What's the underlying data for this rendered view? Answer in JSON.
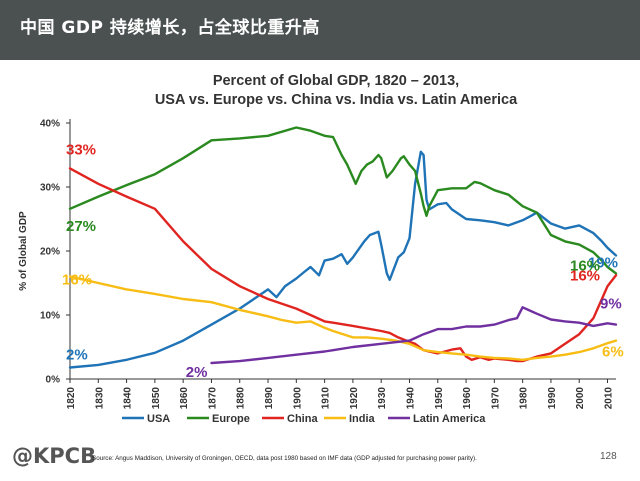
{
  "header": {
    "title": "中国 GDP 持续增长，占全球比重升高"
  },
  "chart_data": {
    "type": "line",
    "title": "Percent of Global GDP, 1820 – 2013,",
    "subtitle": "USA vs. Europe vs. China vs. India vs. Latin America",
    "xlabel": "",
    "ylabel": "% of Global GDP",
    "xlim": [
      1820,
      2013
    ],
    "ylim": [
      0,
      40
    ],
    "x_ticks": [
      1820,
      1830,
      1840,
      1850,
      1860,
      1870,
      1880,
      1890,
      1900,
      1910,
      1920,
      1930,
      1940,
      1950,
      1960,
      1970,
      1980,
      1990,
      2000,
      2010
    ],
    "y_ticks": [
      0,
      10,
      20,
      30,
      40
    ],
    "y_tick_labels": [
      "0%",
      "10%",
      "20%",
      "30%",
      "40%"
    ],
    "grid": false,
    "legend_position": "bottom",
    "series": [
      {
        "name": "USA",
        "color": "#1f73b7",
        "points": [
          [
            1820,
            1.8
          ],
          [
            1830,
            2.2
          ],
          [
            1840,
            3.0
          ],
          [
            1850,
            4.1
          ],
          [
            1860,
            6.0
          ],
          [
            1870,
            8.5
          ],
          [
            1880,
            11.0
          ],
          [
            1885,
            12.5
          ],
          [
            1890,
            14.0
          ],
          [
            1893,
            12.8
          ],
          [
            1896,
            14.5
          ],
          [
            1900,
            15.7
          ],
          [
            1903,
            16.8
          ],
          [
            1905,
            17.5
          ],
          [
            1908,
            16.2
          ],
          [
            1910,
            18.5
          ],
          [
            1913,
            18.8
          ],
          [
            1916,
            19.5
          ],
          [
            1918,
            18.0
          ],
          [
            1920,
            19.0
          ],
          [
            1924,
            21.5
          ],
          [
            1926,
            22.5
          ],
          [
            1929,
            23.0
          ],
          [
            1930,
            21.0
          ],
          [
            1932,
            16.5
          ],
          [
            1933,
            15.5
          ],
          [
            1936,
            19.0
          ],
          [
            1938,
            19.8
          ],
          [
            1940,
            22.0
          ],
          [
            1942,
            30.5
          ],
          [
            1944,
            35.5
          ],
          [
            1945,
            35.0
          ],
          [
            1946,
            28.0
          ],
          [
            1947,
            26.5
          ],
          [
            1950,
            27.3
          ],
          [
            1953,
            27.5
          ],
          [
            1955,
            26.5
          ],
          [
            1960,
            25.0
          ],
          [
            1965,
            24.8
          ],
          [
            1970,
            24.5
          ],
          [
            1975,
            24.0
          ],
          [
            1980,
            24.8
          ],
          [
            1983,
            25.5
          ],
          [
            1985,
            26.0
          ],
          [
            1990,
            24.3
          ],
          [
            1995,
            23.5
          ],
          [
            2000,
            24.0
          ],
          [
            2005,
            22.8
          ],
          [
            2008,
            21.5
          ],
          [
            2010,
            20.5
          ],
          [
            2013,
            19.3
          ]
        ]
      },
      {
        "name": "Europe",
        "color": "#2a8a1f",
        "points": [
          [
            1820,
            26.6
          ],
          [
            1830,
            28.5
          ],
          [
            1840,
            30.3
          ],
          [
            1850,
            32.0
          ],
          [
            1860,
            34.5
          ],
          [
            1870,
            37.3
          ],
          [
            1880,
            37.6
          ],
          [
            1890,
            38.0
          ],
          [
            1900,
            39.3
          ],
          [
            1905,
            38.8
          ],
          [
            1910,
            38.0
          ],
          [
            1913,
            37.8
          ],
          [
            1916,
            35.0
          ],
          [
            1918,
            33.5
          ],
          [
            1920,
            31.5
          ],
          [
            1921,
            30.5
          ],
          [
            1923,
            32.5
          ],
          [
            1925,
            33.5
          ],
          [
            1927,
            34.0
          ],
          [
            1929,
            35.0
          ],
          [
            1930,
            34.5
          ],
          [
            1932,
            31.5
          ],
          [
            1934,
            32.5
          ],
          [
            1937,
            34.5
          ],
          [
            1938,
            34.8
          ],
          [
            1940,
            33.5
          ],
          [
            1942,
            32.5
          ],
          [
            1944,
            29.0
          ],
          [
            1945,
            27.0
          ],
          [
            1946,
            25.5
          ],
          [
            1947,
            27.0
          ],
          [
            1950,
            29.5
          ],
          [
            1955,
            29.8
          ],
          [
            1960,
            29.8
          ],
          [
            1963,
            30.8
          ],
          [
            1965,
            30.6
          ],
          [
            1970,
            29.5
          ],
          [
            1975,
            28.8
          ],
          [
            1980,
            27.0
          ],
          [
            1985,
            26.0
          ],
          [
            1990,
            22.5
          ],
          [
            1995,
            21.5
          ],
          [
            2000,
            21.0
          ],
          [
            2005,
            19.8
          ],
          [
            2008,
            18.5
          ],
          [
            2010,
            17.5
          ],
          [
            2013,
            16.5
          ]
        ]
      },
      {
        "name": "China",
        "color": "#e02520",
        "points": [
          [
            1820,
            32.9
          ],
          [
            1830,
            30.5
          ],
          [
            1840,
            28.5
          ],
          [
            1850,
            26.6
          ],
          [
            1860,
            21.5
          ],
          [
            1870,
            17.2
          ],
          [
            1880,
            14.5
          ],
          [
            1890,
            12.5
          ],
          [
            1900,
            11.0
          ],
          [
            1905,
            10.0
          ],
          [
            1910,
            9.0
          ],
          [
            1913,
            8.8
          ],
          [
            1920,
            8.3
          ],
          [
            1930,
            7.5
          ],
          [
            1933,
            7.2
          ],
          [
            1936,
            6.5
          ],
          [
            1940,
            5.8
          ],
          [
            1942,
            5.5
          ],
          [
            1945,
            4.5
          ],
          [
            1950,
            4.0
          ],
          [
            1955,
            4.6
          ],
          [
            1958,
            4.8
          ],
          [
            1960,
            3.5
          ],
          [
            1962,
            3.0
          ],
          [
            1965,
            3.4
          ],
          [
            1968,
            3.0
          ],
          [
            1970,
            3.2
          ],
          [
            1975,
            3.0
          ],
          [
            1978,
            2.8
          ],
          [
            1980,
            2.8
          ],
          [
            1985,
            3.5
          ],
          [
            1990,
            4.0
          ],
          [
            1995,
            5.5
          ],
          [
            2000,
            7.0
          ],
          [
            2005,
            9.5
          ],
          [
            2008,
            12.5
          ],
          [
            2010,
            14.5
          ],
          [
            2013,
            16.2
          ]
        ]
      },
      {
        "name": "India",
        "color": "#f7bd14",
        "points": [
          [
            1820,
            16.0
          ],
          [
            1830,
            15.0
          ],
          [
            1840,
            14.0
          ],
          [
            1850,
            13.3
          ],
          [
            1860,
            12.5
          ],
          [
            1870,
            12.0
          ],
          [
            1880,
            10.8
          ],
          [
            1885,
            10.3
          ],
          [
            1890,
            9.8
          ],
          [
            1895,
            9.2
          ],
          [
            1900,
            8.8
          ],
          [
            1905,
            9.0
          ],
          [
            1910,
            8.0
          ],
          [
            1913,
            7.5
          ],
          [
            1920,
            6.5
          ],
          [
            1925,
            6.5
          ],
          [
            1930,
            6.3
          ],
          [
            1935,
            6.0
          ],
          [
            1940,
            5.5
          ],
          [
            1945,
            4.5
          ],
          [
            1950,
            4.2
          ],
          [
            1955,
            4.0
          ],
          [
            1960,
            3.8
          ],
          [
            1965,
            3.5
          ],
          [
            1970,
            3.3
          ],
          [
            1975,
            3.2
          ],
          [
            1980,
            3.0
          ],
          [
            1985,
            3.3
          ],
          [
            1990,
            3.5
          ],
          [
            1995,
            3.8
          ],
          [
            2000,
            4.2
          ],
          [
            2005,
            4.8
          ],
          [
            2010,
            5.6
          ],
          [
            2013,
            6.0
          ]
        ]
      },
      {
        "name": "Latin America",
        "color": "#7030a0",
        "points": [
          [
            1870,
            2.5
          ],
          [
            1880,
            2.8
          ],
          [
            1890,
            3.3
          ],
          [
            1900,
            3.8
          ],
          [
            1910,
            4.3
          ],
          [
            1913,
            4.5
          ],
          [
            1920,
            5.0
          ],
          [
            1930,
            5.5
          ],
          [
            1940,
            6.0
          ],
          [
            1945,
            7.0
          ],
          [
            1950,
            7.8
          ],
          [
            1955,
            7.8
          ],
          [
            1960,
            8.2
          ],
          [
            1965,
            8.2
          ],
          [
            1970,
            8.5
          ],
          [
            1975,
            9.2
          ],
          [
            1978,
            9.5
          ],
          [
            1980,
            11.2
          ],
          [
            1982,
            10.8
          ],
          [
            1985,
            10.2
          ],
          [
            1990,
            9.3
          ],
          [
            1995,
            9.0
          ],
          [
            2000,
            8.8
          ],
          [
            2005,
            8.3
          ],
          [
            2010,
            8.7
          ],
          [
            2013,
            8.5
          ]
        ]
      }
    ],
    "annotations": [
      {
        "text": "33%",
        "series": "China",
        "year": 1820,
        "pct": 32.9
      },
      {
        "text": "27%",
        "series": "Europe",
        "year": 1820,
        "pct": 26.6
      },
      {
        "text": "16%",
        "series": "India",
        "year": 1820,
        "pct": 16.0
      },
      {
        "text": "2%",
        "series": "USA",
        "year": 1820,
        "pct": 1.8
      },
      {
        "text": "2%",
        "series": "Latin America",
        "year": 1870,
        "pct": 2.5
      },
      {
        "text": "19%",
        "series": "USA",
        "year": 2013,
        "pct": 19.3
      },
      {
        "text": "16%",
        "series": "Europe",
        "year": 2013,
        "pct": 16.5
      },
      {
        "text": "16%",
        "series": "China",
        "year": 2013,
        "pct": 16.2
      },
      {
        "text": "9%",
        "series": "Latin America",
        "year": 2013,
        "pct": 8.5
      },
      {
        "text": "6%",
        "series": "India",
        "year": 2013,
        "pct": 6.0
      }
    ]
  },
  "footer": {
    "logo": "@KPCB",
    "source": "Source: Angus Maddison, University of Groningen, OECD, data post 1980 based on IMF data (GDP adjusted for purchasing power parity).",
    "page_number": "128"
  }
}
